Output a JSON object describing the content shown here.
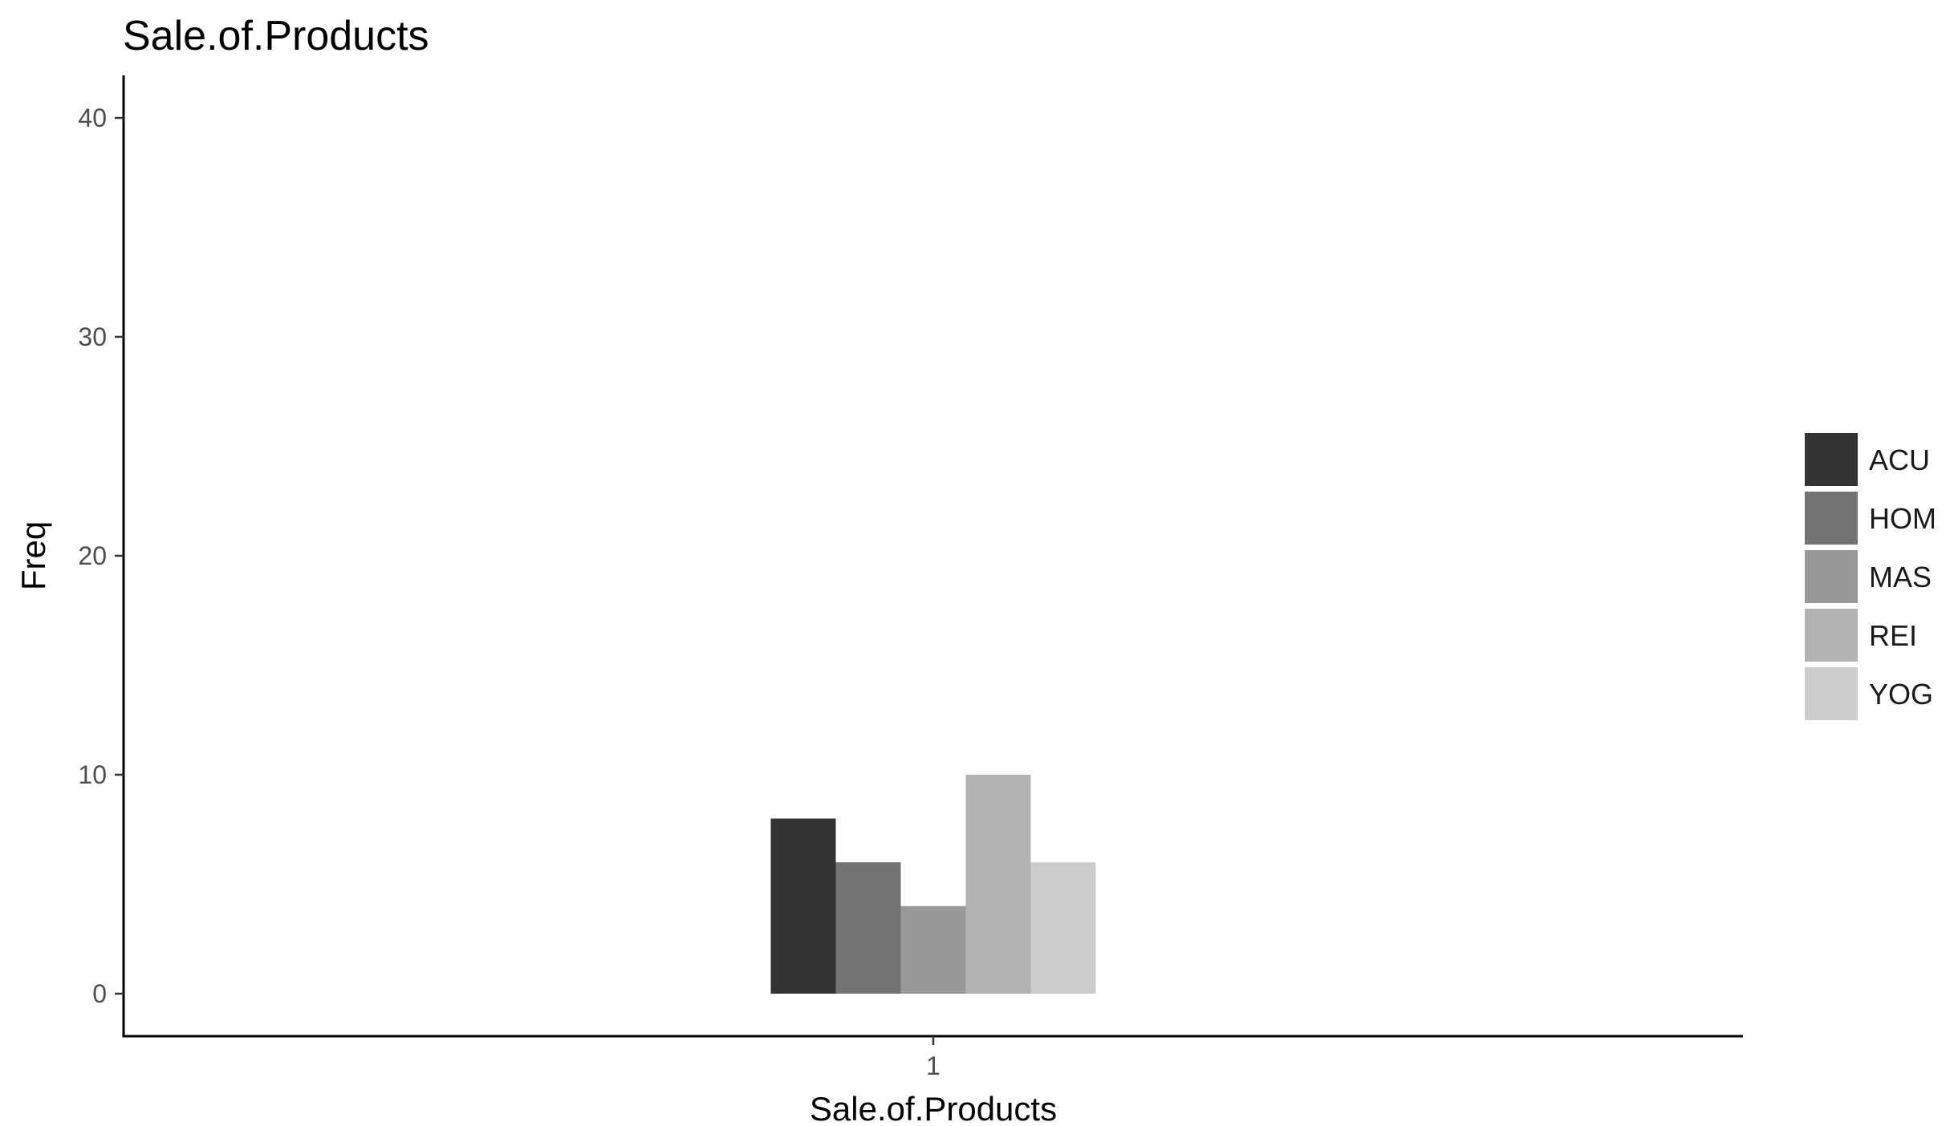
{
  "chart_data": {
    "type": "bar",
    "title": "Sale.of.Products",
    "xlabel": "Sale.of.Products",
    "ylabel": "Freq",
    "categories": [
      "1"
    ],
    "series": [
      {
        "name": "ACU",
        "values": [
          8
        ],
        "color": "#333333"
      },
      {
        "name": "HOM",
        "values": [
          6
        ],
        "color": "#737373"
      },
      {
        "name": "MAS",
        "values": [
          4
        ],
        "color": "#999999"
      },
      {
        "name": "REI",
        "values": [
          10
        ],
        "color": "#b3b3b3"
      },
      {
        "name": "YOG",
        "values": [
          6
        ],
        "color": "#cccccc"
      }
    ],
    "ylim": [
      0,
      40
    ],
    "yticks": [
      "0",
      "10",
      "20",
      "30",
      "40"
    ],
    "grid": false,
    "legend_position": "right"
  }
}
